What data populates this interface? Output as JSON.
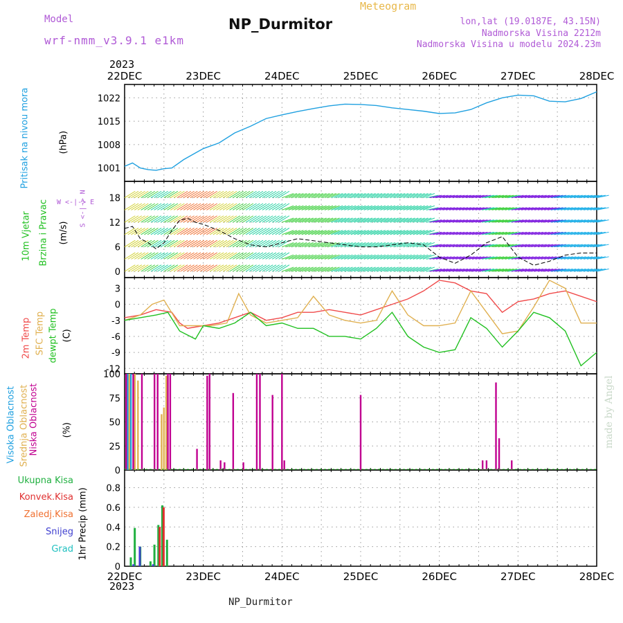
{
  "header": {
    "model_label": "Model",
    "model_name": "wrf-nmm_v3.9.1 e1km",
    "product": "Meteogram",
    "station": "NP_Durmitor",
    "lonlat": "lon,lat (19.0187E, 43.15N)",
    "altitude": "Nadmorska Visina 2212m",
    "model_altitude": "Nadmorska Visina u modelu 2024.23m",
    "year_top": "2023",
    "year_bottom": "2023",
    "footer_station": "NP_Durmitor",
    "credit": "made by Angel"
  },
  "colors": {
    "pressure": "#1fa0e0",
    "temp2m": "#f04a4a",
    "sfc": "#e0b050",
    "dew": "#20c020",
    "high_cloud": "#1fa0e0",
    "mid_cloud": "#e0b050",
    "low_cloud": "#c00090",
    "precip_total": "#20b040",
    "precip_conv": "#e03030",
    "precip_frozen": "#f07030",
    "snow": "#4040d0",
    "graupel": "#20c0c0"
  },
  "axis_labels": {
    "pressure": [
      "Pritisak na nivou mora",
      "(hPa)"
    ],
    "wind": [
      "10m Vjetar",
      "Brzina i Pravac",
      "(m/s)"
    ],
    "wind_compass": "W <-|-> E",
    "wind_compass_v": "S <-|-> N",
    "temp": [
      "2m Temp",
      "SFC Temp",
      "dewpt Temp",
      "(C)"
    ],
    "cloud": [
      "Visoka Oblacnost",
      "Srednja Oblacnost",
      "Niska Oblacnost",
      "(%)"
    ],
    "precip_unit": "1hr Precip (mm)",
    "precip_legend": [
      "Ukupna Kisa",
      "Konvek.Kisa",
      "Zaledj.Kisa",
      "Snijeg",
      "Grad"
    ]
  },
  "chart_data": [
    {
      "type": "line",
      "panel": "pressure",
      "x_ticks": [
        "22DEC",
        "23DEC",
        "24DEC",
        "25DEC",
        "26DEC",
        "27DEC",
        "28DEC"
      ],
      "y_ticks": [
        "1001",
        "1008",
        "1015",
        "1022"
      ],
      "ylim": [
        997,
        1026
      ],
      "series": [
        {
          "name": "Pritisak na nivou mora",
          "x": [
            0,
            0.1,
            0.2,
            0.3,
            0.4,
            0.5,
            0.6,
            0.75,
            0.9,
            1.0,
            1.2,
            1.4,
            1.6,
            1.8,
            2.0,
            2.2,
            2.4,
            2.6,
            2.8,
            3.0,
            3.2,
            3.4,
            3.6,
            3.8,
            4.0,
            4.2,
            4.4,
            4.6,
            4.8,
            5.0,
            5.2,
            5.4,
            5.6,
            5.8,
            6.0
          ],
          "y": [
            1001.5,
            1002.5,
            1001.0,
            1000.5,
            1000.3,
            1000.8,
            1001.0,
            1003.5,
            1005.5,
            1006.8,
            1008.5,
            1011.5,
            1013.5,
            1015.8,
            1016.9,
            1017.9,
            1018.8,
            1019.6,
            1020.1,
            1020.0,
            1019.7,
            1019.0,
            1018.5,
            1018.0,
            1017.3,
            1017.5,
            1018.5,
            1020.5,
            1022.0,
            1022.8,
            1022.6,
            1021.0,
            1020.8,
            1021.8,
            1023.8
          ]
        }
      ]
    },
    {
      "type": "line",
      "panel": "wind",
      "x_ticks": [
        "22DEC",
        "23DEC",
        "24DEC",
        "25DEC",
        "26DEC",
        "27DEC",
        "28DEC"
      ],
      "y_ticks": [
        "0",
        "6",
        "12",
        "18"
      ],
      "ylim": [
        -1.5,
        22
      ],
      "series": [
        {
          "name": "10m Vjetar",
          "x": [
            0,
            0.1,
            0.2,
            0.3,
            0.4,
            0.5,
            0.6,
            0.7,
            0.8,
            0.9,
            1.0,
            1.2,
            1.4,
            1.6,
            1.8,
            2.0,
            2.2,
            2.4,
            2.6,
            2.8,
            3.0,
            3.2,
            3.4,
            3.6,
            3.8,
            4.0,
            4.2,
            4.4,
            4.6,
            4.8,
            5.0,
            5.2,
            5.4,
            5.6,
            5.8,
            6.0
          ],
          "y": [
            10.5,
            11.0,
            8.0,
            7.0,
            5.5,
            7.0,
            10.0,
            12.5,
            13.0,
            12.0,
            11.5,
            10.0,
            8.0,
            6.5,
            6.0,
            7.0,
            8.0,
            7.5,
            7.0,
            6.5,
            6.0,
            6.0,
            6.5,
            7.0,
            6.5,
            3.5,
            2.0,
            4.0,
            7.0,
            8.5,
            3.5,
            1.5,
            2.5,
            4.0,
            4.5,
            4.5
          ]
        }
      ]
    },
    {
      "type": "line",
      "panel": "temperature",
      "x_ticks": [
        "22DEC",
        "23DEC",
        "24DEC",
        "25DEC",
        "26DEC",
        "27DEC",
        "28DEC"
      ],
      "y_ticks": [
        "3",
        "0",
        "-3",
        "-6",
        "-9",
        "-12"
      ],
      "ylim": [
        -13,
        5
      ],
      "series": [
        {
          "name": "2m Temp",
          "x": [
            0,
            0.2,
            0.4,
            0.6,
            0.7,
            0.8,
            1.0,
            1.2,
            1.4,
            1.6,
            1.8,
            2.0,
            2.2,
            2.4,
            2.6,
            2.8,
            3.0,
            3.2,
            3.4,
            3.6,
            3.8,
            4.0,
            4.2,
            4.4,
            4.6,
            4.8,
            5.0,
            5.2,
            5.4,
            5.6,
            5.8,
            6.0
          ],
          "y": [
            -2.5,
            -2.0,
            -1.0,
            -1.5,
            -3.5,
            -4.5,
            -4.0,
            -3.5,
            -2.5,
            -1.5,
            -3.0,
            -2.5,
            -1.5,
            -1.5,
            -1.0,
            -1.5,
            -2.0,
            -1.0,
            0.0,
            1.0,
            2.5,
            4.5,
            4.0,
            2.5,
            2.0,
            -1.5,
            0.5,
            1.0,
            2.0,
            2.5,
            1.5,
            0.5
          ]
        },
        {
          "name": "SFC Temp",
          "x": [
            0,
            0.2,
            0.35,
            0.5,
            0.7,
            0.9,
            1.1,
            1.3,
            1.45,
            1.6,
            1.8,
            2.0,
            2.2,
            2.4,
            2.6,
            2.8,
            3.0,
            3.2,
            3.4,
            3.6,
            3.8,
            4.0,
            4.2,
            4.4,
            4.6,
            4.8,
            5.0,
            5.2,
            5.4,
            5.6,
            5.8,
            6.0
          ],
          "y": [
            -3.0,
            -2.0,
            0.0,
            0.8,
            -4.0,
            -4.0,
            -4.0,
            -3.5,
            2.0,
            -2.0,
            -3.5,
            -3.0,
            -2.5,
            1.5,
            -2.0,
            -3.0,
            -3.5,
            -3.0,
            2.5,
            -2.0,
            -4.0,
            -4.0,
            -3.5,
            2.5,
            -1.5,
            -5.5,
            -5.0,
            -0.5,
            4.5,
            3.0,
            -3.5,
            -3.5
          ]
        },
        {
          "name": "dewpt Temp",
          "x": [
            0,
            0.2,
            0.4,
            0.55,
            0.7,
            0.9,
            1.0,
            1.2,
            1.4,
            1.6,
            1.8,
            2.0,
            2.2,
            2.4,
            2.6,
            2.8,
            3.0,
            3.2,
            3.4,
            3.6,
            3.8,
            4.0,
            4.2,
            4.4,
            4.6,
            4.8,
            5.0,
            5.2,
            5.4,
            5.6,
            5.8,
            6.0
          ],
          "y": [
            -3.0,
            -2.5,
            -2.0,
            -1.5,
            -5.0,
            -6.5,
            -4.0,
            -4.5,
            -3.5,
            -1.5,
            -4.0,
            -3.5,
            -4.5,
            -4.5,
            -6.0,
            -6.0,
            -6.5,
            -4.5,
            -1.5,
            -6.0,
            -8.0,
            -9.0,
            -8.5,
            -2.5,
            -4.5,
            -8.0,
            -5.0,
            -1.5,
            -2.5,
            -5.0,
            -11.5,
            -9.0
          ]
        }
      ]
    },
    {
      "type": "bar",
      "panel": "cloud",
      "x_ticks": [
        "22DEC",
        "23DEC",
        "24DEC",
        "25DEC",
        "26DEC",
        "27DEC",
        "28DEC"
      ],
      "y_ticks": [
        "0",
        "25",
        "50",
        "75",
        "100"
      ],
      "ylim": [
        0,
        100
      ],
      "series": [
        {
          "name": "Visoka Oblacnost",
          "x": [
            0.04,
            0.08
          ],
          "values": [
            100,
            100
          ]
        },
        {
          "name": "Srednja Oblacnost",
          "x": [
            0.06,
            0.13,
            0.17,
            0.47,
            0.5,
            0.53
          ],
          "values": [
            100,
            100,
            93,
            58,
            65,
            98
          ]
        },
        {
          "name": "Niska Oblacnost",
          "x": [
            0.02,
            0.11,
            0.22,
            0.38,
            0.42,
            0.55,
            0.58,
            0.92,
            1.05,
            1.08,
            1.22,
            1.27,
            1.38,
            1.51,
            1.68,
            1.72,
            1.88,
            2.0,
            2.03,
            3.0,
            4.55,
            4.6,
            4.72,
            4.76,
            4.92
          ],
          "values": [
            100,
            100,
            100,
            100,
            100,
            100,
            100,
            22,
            98,
            100,
            10,
            8,
            80,
            8,
            100,
            100,
            78,
            100,
            10,
            78,
            10,
            10,
            91,
            33,
            10
          ]
        }
      ]
    },
    {
      "type": "bar",
      "panel": "precipitation",
      "x_ticks": [
        "22DEC",
        "23DEC",
        "24DEC",
        "25DEC",
        "26DEC",
        "27DEC",
        "28DEC"
      ],
      "y_ticks": [
        "0",
        "0.2",
        "0.4",
        "0.6",
        "0.8"
      ],
      "ylim": [
        0,
        0.98
      ],
      "series": [
        {
          "name": "Ukupna Kisa",
          "x": [
            0.08,
            0.13,
            0.2,
            0.33,
            0.38,
            0.43,
            0.48,
            0.54
          ],
          "values": [
            0.09,
            0.39,
            0.2,
            0.05,
            0.22,
            0.42,
            0.62,
            0.27
          ]
        },
        {
          "name": "Konvek.Kisa",
          "x": [
            0.44,
            0.49
          ],
          "values": [
            0.4,
            0.6
          ]
        },
        {
          "name": "Snijeg",
          "x": [
            0.1,
            0.18,
            0.35
          ],
          "values": [
            0.02,
            0.2,
            0.02
          ]
        }
      ]
    }
  ]
}
